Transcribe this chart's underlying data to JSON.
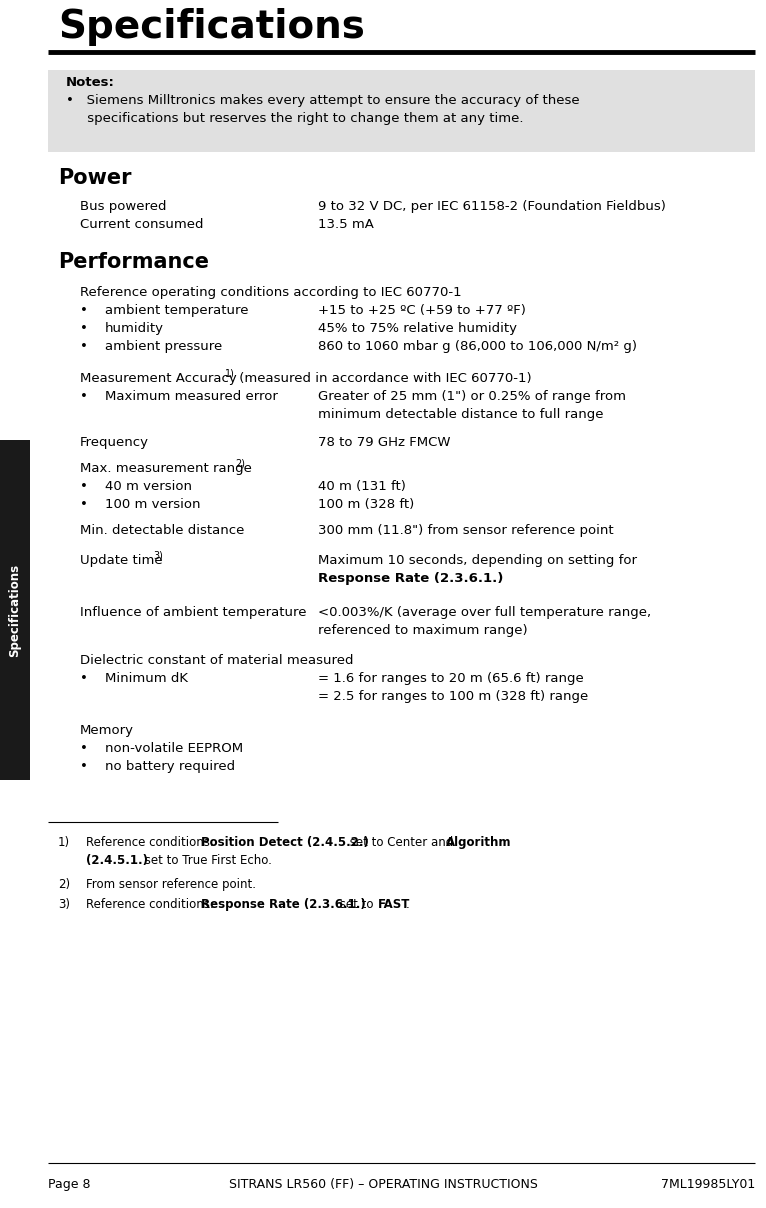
{
  "title": "Specifications",
  "bg_color": "#ffffff",
  "sidebar_label": "Specifications",
  "sidebar_color": "#1a1a1a",
  "notes_bg": "#e0e0e0",
  "notes_title": "Notes:",
  "notes_line1": "•   Siemens Milltronics makes every attempt to ensure the accuracy of these",
  "notes_line2": "     specifications but reserves the right to change them at any time.",
  "section_power_title": "Power",
  "power_rows": [
    [
      "Bus powered",
      "9 to 32 V DC, per IEC 61158-2 (Foundation Fieldbus)"
    ],
    [
      "Current consumed",
      "13.5 mA"
    ]
  ],
  "section_perf_title": "Performance",
  "ref_cond_line": "Reference operating conditions according to IEC 60770-1",
  "perf_bullets": [
    [
      "ambient temperature",
      "+15 to +25 ºC (+59 to +77 ºF)"
    ],
    [
      "humidity",
      "45% to 75% relative humidity"
    ],
    [
      "ambient pressure",
      "860 to 1060 mbar g (86,000 to 106,000 N/m² g)"
    ]
  ],
  "meas_acc_line1": "Measurement Accuracy",
  "meas_acc_super": "1)",
  "meas_acc_line2": " (measured in accordance with IEC 60770-1)",
  "meas_acc_bullet_label": "Maximum measured error",
  "meas_acc_val1": "Greater of 25 mm (1\") or 0.25% of range from",
  "meas_acc_val2": "minimum detectable distance to full range",
  "freq_label": "Frequency",
  "freq_val": "78 to 79 GHz FMCW",
  "max_range_line": "Max. measurement range",
  "max_range_super": "2)",
  "max_range_bullets": [
    [
      "40 m version",
      "40 m (131 ft)"
    ],
    [
      "100 m version",
      "100 m (328 ft)"
    ]
  ],
  "min_dist_label": "Min. detectable distance",
  "min_dist_val": "300 mm (11.8\") from sensor reference point",
  "update_label": "Update time",
  "update_super": "3)",
  "update_val1": "Maximum 10 seconds, depending on setting for",
  "update_val2": "Response Rate (2.3.6.1.)",
  "influence_label": "Influence of ambient temperature",
  "influence_val1": "<0.003%/K (average over full temperature range,",
  "influence_val2": "referenced to maximum range)",
  "dielec_line": "Dielectric constant of material measured",
  "dielec_bullet_label": "Minimum dK",
  "dielec_val1": "= 1.6 for ranges to 20 m (65.6 ft) range",
  "dielec_val2": "= 2.5 for ranges to 100 m (328 ft) range",
  "memory_line": "Memory",
  "memory_bullets": [
    "non-volatile EEPROM",
    "no battery required"
  ],
  "footer_left": "Page 8",
  "footer_center": "SITRANS LR560 (FF) – OPERATING INSTRUCTIONS",
  "footer_right": "7ML19985LY01"
}
